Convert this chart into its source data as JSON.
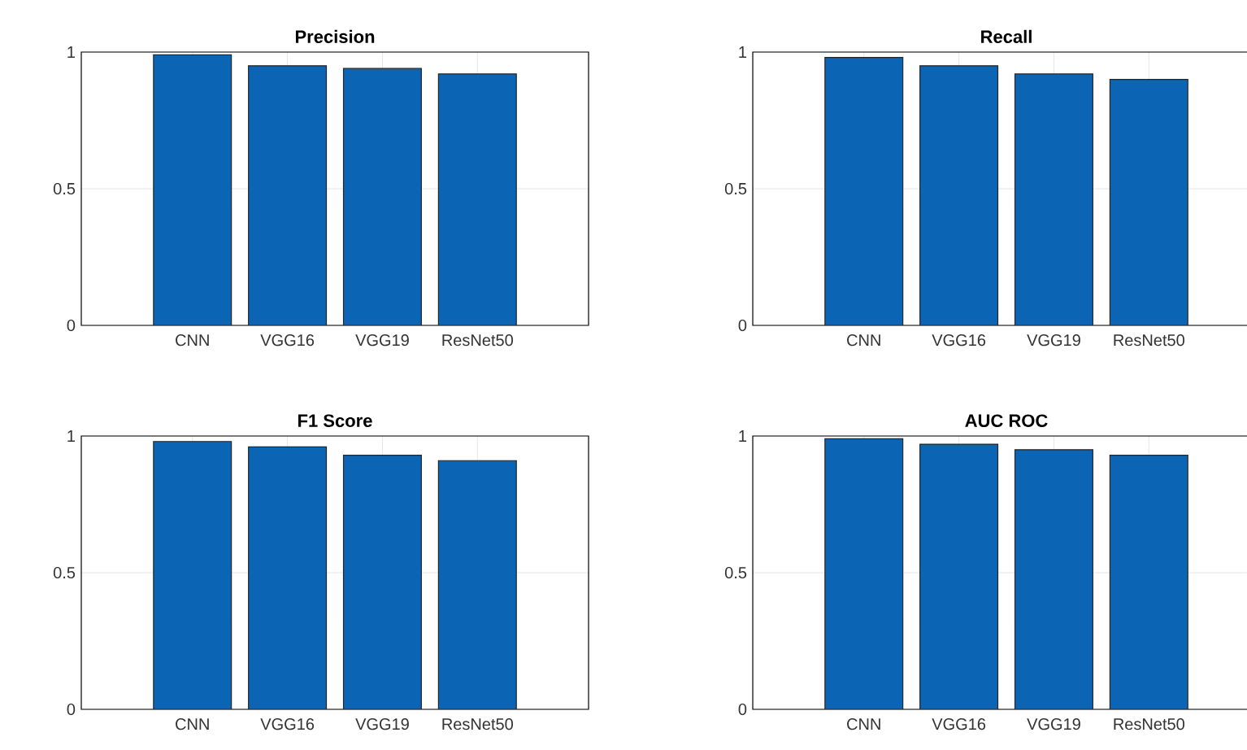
{
  "chart_data": [
    {
      "type": "bar",
      "title": "Precision",
      "categories": [
        "CNN",
        "VGG16",
        "VGG19",
        "ResNet50"
      ],
      "values": [
        0.99,
        0.95,
        0.94,
        0.92
      ],
      "color": "#0b64b4",
      "ylim": [
        0,
        1
      ],
      "yticks": [
        0,
        0.5,
        1
      ],
      "grid": true
    },
    {
      "type": "bar",
      "title": "Recall",
      "categories": [
        "CNN",
        "VGG16",
        "VGG19",
        "ResNet50"
      ],
      "values": [
        0.98,
        0.95,
        0.92,
        0.9
      ],
      "color": "#0b64b4",
      "ylim": [
        0,
        1
      ],
      "yticks": [
        0,
        0.5,
        1
      ],
      "grid": true
    },
    {
      "type": "bar",
      "title": "F1 Score",
      "categories": [
        "CNN",
        "VGG16",
        "VGG19",
        "ResNet50"
      ],
      "values": [
        0.98,
        0.96,
        0.93,
        0.91
      ],
      "color": "#0b64b4",
      "ylim": [
        0,
        1
      ],
      "yticks": [
        0,
        0.5,
        1
      ],
      "grid": true
    },
    {
      "type": "bar",
      "title": "AUC ROC",
      "categories": [
        "CNN",
        "VGG16",
        "VGG19",
        "ResNet50"
      ],
      "values": [
        0.99,
        0.97,
        0.95,
        0.93
      ],
      "color": "#0b64b4",
      "ylim": [
        0,
        1
      ],
      "yticks": [
        0,
        0.5,
        1
      ],
      "grid": true
    }
  ]
}
